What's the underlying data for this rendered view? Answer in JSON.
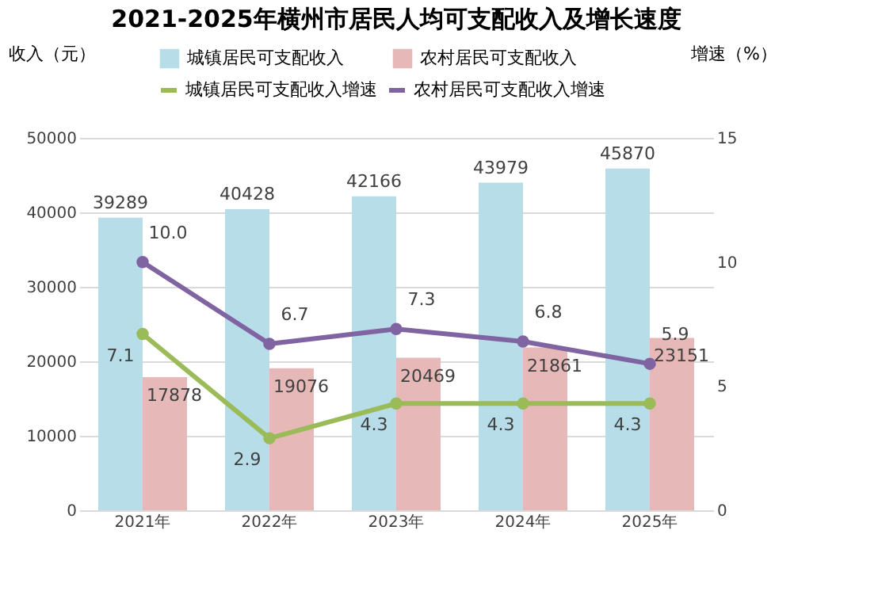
{
  "chart_data": {
    "type": "bar",
    "title": "2021-2025年横州市居民人均可支配收入及增长速度",
    "ylabel": "收入（元）",
    "y2label": "增速（%）",
    "categories": [
      "2021年",
      "2022年",
      "2023年",
      "2024年",
      "2025年"
    ],
    "series": [
      {
        "name": "城镇居民可支配收入",
        "color": "#b7dde8",
        "values": [
          39289,
          40428,
          42166,
          43979,
          45870
        ]
      },
      {
        "name": "农村居民可支配收入",
        "color": "#e6b9b8",
        "values": [
          17878,
          19076,
          20469,
          21861,
          23151
        ]
      },
      {
        "name": "城镇居民可支配收入增速",
        "type": "line",
        "axis": "y2",
        "color": "#9bbb59",
        "marker": "circle",
        "values": [
          7.1,
          2.9,
          4.3,
          4.3,
          4.3
        ],
        "value_labels": [
          "7.1",
          "2.9",
          "4.3",
          "4.3",
          "4.3"
        ]
      },
      {
        "name": "农村居民可支配收入增速",
        "type": "line",
        "axis": "y2",
        "color": "#8064a2",
        "marker": "circle",
        "values": [
          10.0,
          6.7,
          7.3,
          6.8,
          5.9
        ],
        "value_labels": [
          "10.0",
          "6.7",
          "7.3",
          "6.8",
          "5.9"
        ]
      }
    ],
    "ylim": [
      0,
      50000
    ],
    "yticks": [
      0,
      10000,
      20000,
      30000,
      40000,
      50000
    ],
    "y2lim": [
      0,
      15
    ],
    "y2ticks": [
      0,
      5,
      10,
      15
    ],
    "grid": "y",
    "legend": "top",
    "data_labels": true
  }
}
